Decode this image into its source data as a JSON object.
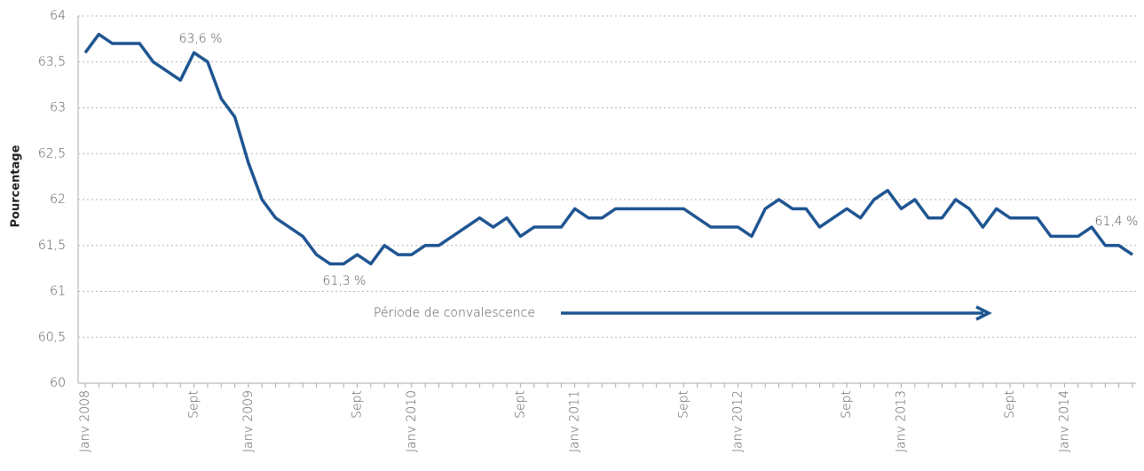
{
  "chart_data": {
    "type": "line",
    "y_label": "Pourcentage",
    "categories": [
      "Janv 2008",
      null,
      null,
      null,
      null,
      null,
      null,
      null,
      "Sept",
      null,
      null,
      null,
      "Janv 2009",
      null,
      null,
      null,
      null,
      null,
      null,
      null,
      "Sept",
      null,
      null,
      null,
      "Janv 2010",
      null,
      null,
      null,
      null,
      null,
      null,
      null,
      "Sept",
      null,
      null,
      null,
      "Janv 2011",
      null,
      null,
      null,
      null,
      null,
      null,
      null,
      "Sept",
      null,
      null,
      null,
      "Janv 2012",
      null,
      null,
      null,
      null,
      null,
      null,
      null,
      "Sept",
      null,
      null,
      null,
      "Janv 2013",
      null,
      null,
      null,
      null,
      null,
      null,
      null,
      "Sept",
      null,
      null,
      null,
      "Janv 2014",
      null,
      null,
      null,
      null,
      null
    ],
    "series": [
      {
        "color": "#1f5592",
        "values": [
          63.6,
          63.8,
          63.7,
          63.7,
          63.7,
          63.5,
          63.4,
          63.3,
          63.6,
          63.5,
          63.1,
          62.9,
          62.4,
          62.0,
          61.8,
          61.7,
          61.6,
          61.4,
          61.3,
          61.3,
          61.4,
          61.3,
          61.5,
          61.4,
          61.4,
          61.5,
          61.5,
          61.6,
          61.7,
          61.8,
          61.7,
          61.8,
          61.6,
          61.7,
          61.7,
          61.7,
          61.9,
          61.8,
          61.8,
          61.9,
          61.9,
          61.9,
          61.9,
          61.9,
          61.9,
          61.8,
          61.7,
          61.7,
          61.7,
          61.6,
          61.9,
          62.0,
          61.9,
          61.9,
          61.7,
          61.8,
          61.9,
          61.8,
          62.0,
          62.1,
          61.9,
          62.0,
          61.8,
          61.8,
          62.0,
          61.9,
          61.7,
          61.9,
          61.8,
          61.8,
          61.8,
          61.6,
          61.6,
          61.6,
          61.7,
          61.5,
          61.5,
          61.4
        ]
      }
    ],
    "ylim": [
      60,
      64
    ],
    "yticks": [
      60,
      {
        "value": 60.5,
        "label": "60,5"
      },
      61,
      {
        "value": 61.5,
        "label": "61,5"
      },
      62,
      {
        "value": 62.5,
        "label": "62,5"
      },
      63,
      {
        "value": 63.5,
        "label": "63,5"
      },
      64
    ],
    "grid": true,
    "annotations": [
      "63,6 %",
      "61,3 %",
      "61,4 %",
      "Période de convalescence"
    ]
  }
}
